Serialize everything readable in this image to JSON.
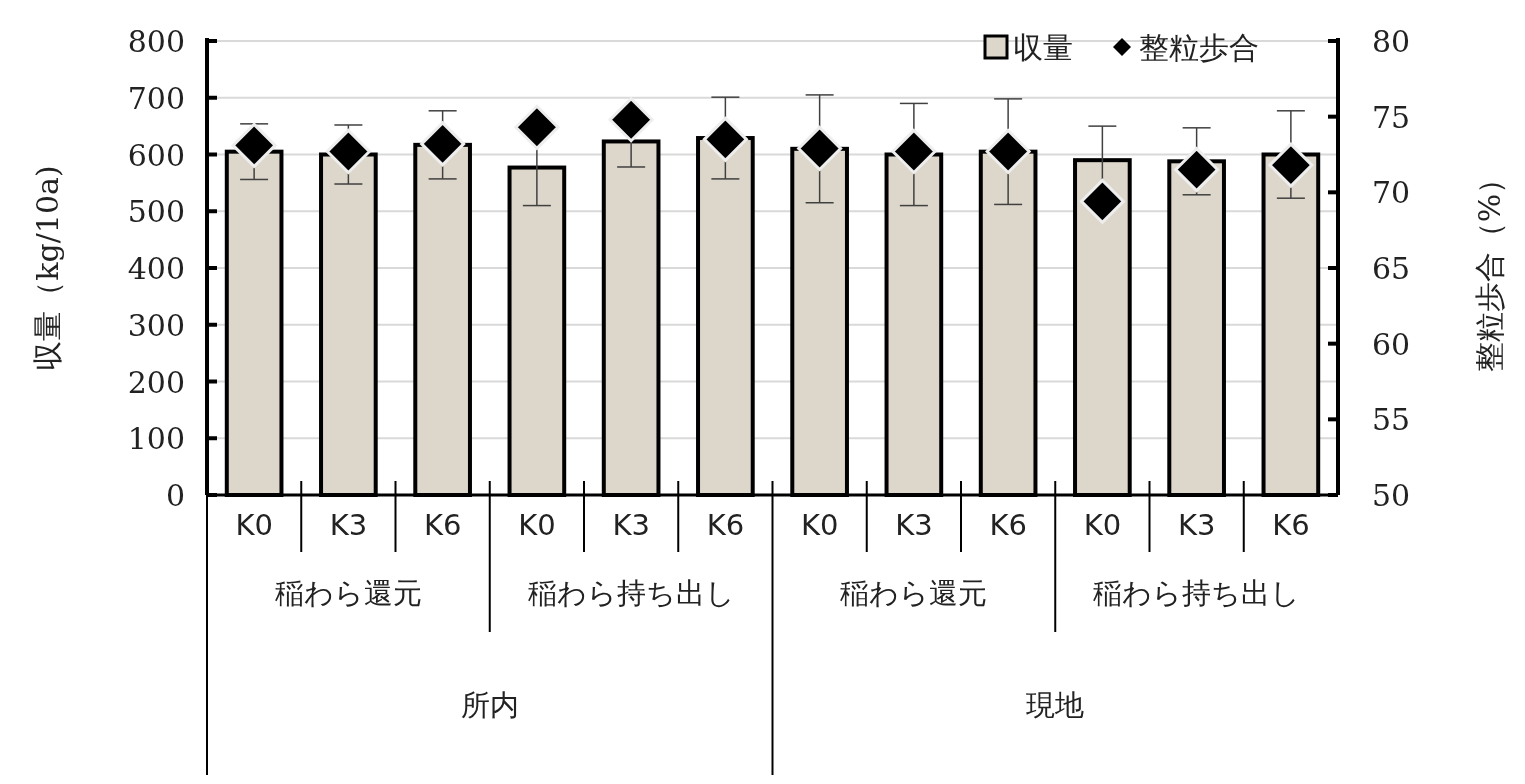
{
  "chart_data": {
    "type": "bar",
    "ylabel": "収量（kg/10a)",
    "y2label": "整粒歩合（%）",
    "categories": [
      "K0",
      "K3",
      "K6",
      "K0",
      "K3",
      "K6",
      "K0",
      "K3",
      "K6",
      "K0",
      "K3",
      "K6"
    ],
    "series": [
      {
        "name": "収量",
        "color": "#ddd6ca",
        "values": [
          605,
          600,
          617,
          577,
          623,
          629,
          610,
          600,
          605,
          590,
          588,
          600
        ],
        "errors": [
          49,
          52,
          60,
          67,
          45,
          72,
          95,
          90,
          93,
          60,
          59,
          77
        ]
      },
      {
        "name": "整粒歩合",
        "type": "scatter",
        "axis": "y2",
        "color": "#000000",
        "values": [
          73.1,
          72.7,
          73.2,
          74.3,
          74.8,
          73.5,
          72.9,
          72.7,
          72.7,
          69.4,
          71.5,
          71.8
        ]
      }
    ],
    "ylim": [
      0,
      800
    ],
    "yticks": [
      0,
      100,
      200,
      300,
      400,
      500,
      600,
      700,
      800
    ],
    "y2lim": [
      50,
      80
    ],
    "y2ticks": [
      50,
      55,
      60,
      65,
      70,
      75,
      80
    ],
    "grid": "y",
    "legend": "top right",
    "marker": "diamond",
    "annotations": [
      "稲わら還元",
      "稲わら持ち出し",
      "稲わら還元",
      "稲わら持ち出し",
      "所内",
      "現地"
    ]
  }
}
